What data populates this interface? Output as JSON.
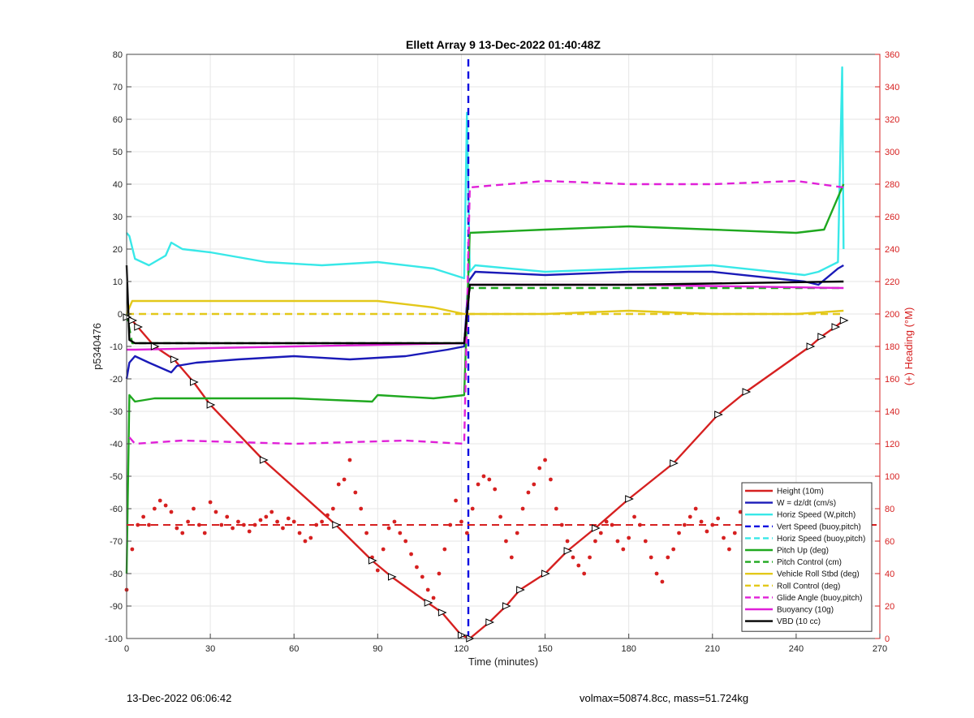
{
  "title": "Ellett Array 9 13-Dec-2022 01:40:48Z",
  "footer_left": "13-Dec-2022 06:06:42",
  "footer_right": "volmax=50874.8cc, mass=51.724kg",
  "chart_data": {
    "type": "line",
    "title": "Ellett Array 9 13-Dec-2022 01:40:48Z",
    "xlabel": "Time (minutes)",
    "ylabel": "p5340476",
    "y2label": "(+) Heading (°M)",
    "xlim": [
      0,
      270
    ],
    "ylim": [
      -100,
      80
    ],
    "y2lim": [
      0,
      360
    ],
    "xticks": [
      0,
      30,
      60,
      90,
      120,
      150,
      180,
      210,
      240,
      270
    ],
    "yticks": [
      -100,
      -90,
      -80,
      -70,
      -60,
      -50,
      -40,
      -30,
      -20,
      -10,
      0,
      10,
      20,
      30,
      40,
      50,
      60,
      70,
      80
    ],
    "y2ticks": [
      0,
      20,
      40,
      60,
      80,
      100,
      120,
      140,
      160,
      180,
      200,
      220,
      240,
      260,
      280,
      300,
      320,
      340,
      360
    ],
    "grid": true,
    "legend_position": "bottom-right",
    "colors": {
      "red": "#d62020",
      "blue": "#1a1ab8",
      "cyan": "#38e8e8",
      "green": "#1fa81f",
      "yellow": "#e3c81a",
      "magenta": "#e020d8",
      "black": "#000000",
      "dark_blue": "#0a0ae0"
    },
    "apogee_time": 122.5,
    "series": [
      {
        "name": "Height (10m)",
        "color": "#d62020",
        "style": "solid",
        "x": [
          0,
          2,
          4,
          10,
          17,
          24,
          30,
          49,
          75,
          88,
          95,
          108,
          113,
          120,
          123,
          130,
          136,
          141,
          150,
          158,
          168,
          180,
          196,
          212,
          222,
          245,
          249,
          254,
          257
        ],
        "y": [
          -1,
          -2,
          -4,
          -10,
          -14,
          -21,
          -28,
          -45,
          -65,
          -76,
          -81,
          -89,
          -92,
          -99,
          -100,
          -95,
          -90,
          -85,
          -80,
          -73,
          -66,
          -57,
          -46,
          -31,
          -24,
          -10,
          -7,
          -4,
          -2
        ]
      },
      {
        "name": "W = dz/dt (cm/s)",
        "color": "#1a1ab8",
        "style": "solid",
        "x": [
          0,
          1,
          3,
          8,
          16,
          18,
          25,
          40,
          60,
          80,
          100,
          115,
          121,
          122.5,
          125,
          150,
          180,
          210,
          243,
          248,
          255,
          257
        ],
        "y": [
          -20,
          -15,
          -13,
          -15,
          -18,
          -16,
          -15,
          -14,
          -13,
          -14,
          -13,
          -11,
          -10,
          10,
          13,
          12,
          13,
          13,
          10,
          9,
          14,
          15
        ]
      },
      {
        "name": "Horiz Speed (W,pitch)",
        "color": "#38e8e8",
        "style": "solid",
        "x": [
          0,
          1,
          3,
          8,
          14,
          16,
          20,
          30,
          50,
          70,
          90,
          110,
          121,
          122,
          123,
          125,
          150,
          180,
          210,
          243,
          248,
          255,
          256.5,
          257
        ],
        "y": [
          25,
          24,
          17,
          15,
          18,
          22,
          20,
          19,
          16,
          15,
          16,
          14,
          11,
          62,
          13,
          15,
          13,
          14,
          15,
          12,
          13,
          16,
          76,
          20
        ]
      },
      {
        "name": "Vert Speed (buoy,pitch)",
        "color": "#0a0ae0",
        "style": "dash",
        "x": [
          122.5,
          122.5
        ],
        "y": [
          -100,
          80
        ]
      },
      {
        "name": "Horiz Speed (buoy,pitch)",
        "color": "#38e8e8",
        "style": "dash",
        "x": [],
        "y": []
      },
      {
        "name": "Pitch Up (deg)",
        "color": "#1fa81f",
        "style": "solid",
        "x": [
          0,
          1,
          3,
          10,
          30,
          60,
          88,
          90,
          110,
          121,
          123,
          150,
          180,
          210,
          240,
          250,
          257
        ],
        "y": [
          -80,
          -25,
          -27,
          -26,
          -26,
          -26,
          -27,
          -25,
          -26,
          -25,
          25,
          26,
          27,
          26,
          25,
          26,
          40
        ]
      },
      {
        "name": "Pitch Control (cm)",
        "color": "#1fa81f",
        "style": "dash",
        "x": [
          0,
          2,
          121,
          123,
          257
        ],
        "y": [
          0,
          -9,
          -9,
          8,
          8
        ]
      },
      {
        "name": "Vehicle Roll Stbd (deg)",
        "color": "#e3c81a",
        "style": "solid",
        "x": [
          0,
          2,
          10,
          30,
          60,
          90,
          110,
          121,
          125,
          150,
          180,
          210,
          240,
          257
        ],
        "y": [
          0,
          4,
          4,
          4,
          4,
          4,
          2,
          0,
          0,
          0,
          1,
          0,
          0,
          1
        ]
      },
      {
        "name": "Roll Control (deg)",
        "color": "#e3c81a",
        "style": "dash",
        "x": [
          0,
          257
        ],
        "y": [
          0,
          0
        ]
      },
      {
        "name": "Glide Angle (buoy,pitch)",
        "color": "#e020d8",
        "style": "dash",
        "x": [
          1,
          3,
          20,
          60,
          100,
          121,
          123,
          150,
          180,
          210,
          240,
          257
        ],
        "y": [
          -38,
          -40,
          -39,
          -40,
          -39,
          -40,
          39,
          41,
          40,
          40,
          41,
          39
        ]
      },
      {
        "name": "Buoyancy (10g)",
        "color": "#e020d8",
        "style": "solid",
        "x": [
          0,
          3,
          60,
          121,
          123,
          180,
          257
        ],
        "y": [
          -11,
          -11,
          -10,
          -9,
          9,
          9,
          8
        ]
      },
      {
        "name": "VBD (10 cc)",
        "color": "#000000",
        "style": "solid",
        "x": [
          0,
          1,
          3,
          60,
          121,
          123,
          180,
          257
        ],
        "y": [
          15,
          -8,
          -9,
          -9,
          -9,
          9,
          9,
          10
        ]
      }
    ],
    "heading_points_y2": {
      "color": "#d62020",
      "x": [
        0,
        2,
        4,
        6,
        8,
        10,
        12,
        14,
        16,
        18,
        20,
        22,
        24,
        26,
        28,
        30,
        32,
        34,
        36,
        38,
        40,
        42,
        44,
        46,
        48,
        50,
        52,
        54,
        56,
        58,
        60,
        62,
        64,
        66,
        68,
        70,
        72,
        74,
        76,
        78,
        80,
        82,
        84,
        86,
        88,
        90,
        92,
        94,
        96,
        98,
        100,
        102,
        104,
        106,
        108,
        110,
        112,
        114,
        116,
        118,
        120,
        122,
        124,
        126,
        128,
        130,
        132,
        134,
        136,
        138,
        140,
        142,
        144,
        146,
        148,
        150,
        152,
        154,
        156,
        158,
        160,
        162,
        164,
        166,
        168,
        170,
        172,
        174,
        176,
        178,
        180,
        182,
        184,
        186,
        188,
        190,
        192,
        194,
        196,
        198,
        200,
        202,
        204,
        206,
        208,
        210,
        212,
        214,
        216,
        218,
        220,
        222,
        224,
        226,
        228,
        230,
        232,
        234,
        236,
        238,
        240,
        242,
        244,
        246,
        248,
        250,
        252,
        254,
        256
      ],
      "y": [
        30,
        55,
        70,
        75,
        70,
        80,
        85,
        82,
        78,
        68,
        65,
        72,
        80,
        70,
        65,
        84,
        78,
        70,
        75,
        68,
        72,
        70,
        66,
        70,
        73,
        75,
        78,
        72,
        68,
        74,
        72,
        65,
        60,
        62,
        70,
        72,
        76,
        80,
        95,
        98,
        110,
        90,
        80,
        65,
        50,
        42,
        55,
        68,
        72,
        65,
        60,
        52,
        44,
        38,
        30,
        25,
        40,
        55,
        70,
        85,
        72,
        65,
        80,
        95,
        100,
        98,
        92,
        75,
        60,
        50,
        65,
        80,
        90,
        95,
        105,
        110,
        98,
        80,
        70,
        60,
        50,
        45,
        40,
        50,
        60,
        65,
        72,
        70,
        60,
        55,
        62,
        75,
        70,
        60,
        50,
        40,
        35,
        50,
        55,
        65,
        70,
        75,
        80,
        72,
        66,
        70,
        74,
        62,
        55,
        65,
        78,
        70,
        62,
        68,
        72,
        80,
        75,
        66,
        72,
        78,
        85,
        80,
        75,
        68,
        62,
        70,
        80,
        88,
        92
      ]
    },
    "heading_mean_y2": {
      "color": "#d62020",
      "style": "dash",
      "value": 70
    },
    "legend": [
      {
        "label": "Height (10m)",
        "color": "#d62020",
        "style": "solid"
      },
      {
        "label": "W = dz/dt (cm/s)",
        "color": "#1a1ab8",
        "style": "solid"
      },
      {
        "label": "Horiz Speed (W,pitch)",
        "color": "#38e8e8",
        "style": "solid"
      },
      {
        "label": "Vert Speed (buoy,pitch)",
        "color": "#0a0ae0",
        "style": "dash"
      },
      {
        "label": "Horiz Speed (buoy,pitch)",
        "color": "#38e8e8",
        "style": "dash"
      },
      {
        "label": "Pitch Up (deg)",
        "color": "#1fa81f",
        "style": "solid"
      },
      {
        "label": "Pitch Control (cm)",
        "color": "#1fa81f",
        "style": "dash"
      },
      {
        "label": "Vehicle Roll Stbd (deg)",
        "color": "#e3c81a",
        "style": "solid"
      },
      {
        "label": "Roll Control (deg)",
        "color": "#e3c81a",
        "style": "dash"
      },
      {
        "label": "Glide Angle (buoy,pitch)",
        "color": "#e020d8",
        "style": "dash"
      },
      {
        "label": "Buoyancy (10g)",
        "color": "#e020d8",
        "style": "solid"
      },
      {
        "label": "VBD (10 cc)",
        "color": "#000000",
        "style": "solid"
      }
    ]
  }
}
